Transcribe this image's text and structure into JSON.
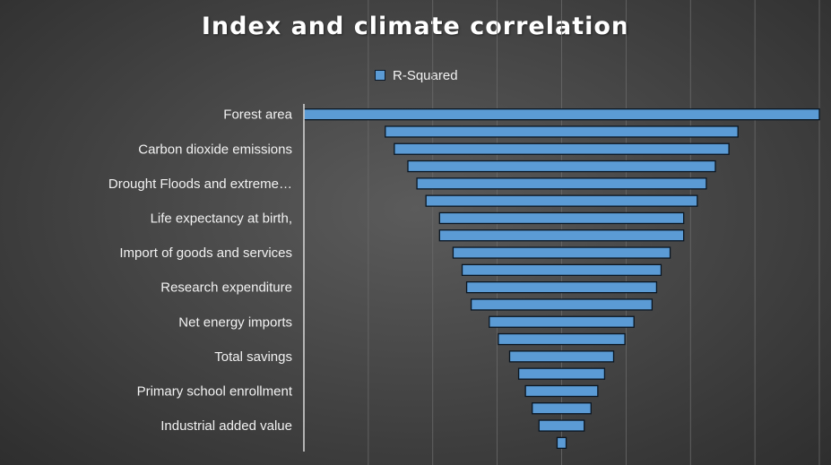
{
  "chart_data": {
    "type": "bar",
    "orientation": "horizontal",
    "layout": "funnel",
    "title": "Index and climate correlation",
    "legend": {
      "position": "top",
      "entries": [
        "R-Squared"
      ]
    },
    "series": [
      {
        "name": "R-Squared",
        "color": "#5b9bd5",
        "values": [
          0.57,
          0.39,
          0.37,
          0.34,
          0.32,
          0.3,
          0.27,
          0.27,
          0.24,
          0.22,
          0.21,
          0.2,
          0.16,
          0.14,
          0.115,
          0.095,
          0.08,
          0.065,
          0.05,
          0.01
        ]
      }
    ],
    "categories": [
      "Forest area",
      "",
      "Carbon dioxide emissions",
      "",
      "Drought Floods and extreme…",
      "",
      "Life expectancy at birth,",
      "",
      "Import of goods and services",
      "",
      "Research expenditure",
      "",
      "Net energy imports",
      "",
      "Total savings",
      "",
      "Primary school enrollment",
      "",
      "Industrial added value",
      ""
    ],
    "grid": true
  }
}
